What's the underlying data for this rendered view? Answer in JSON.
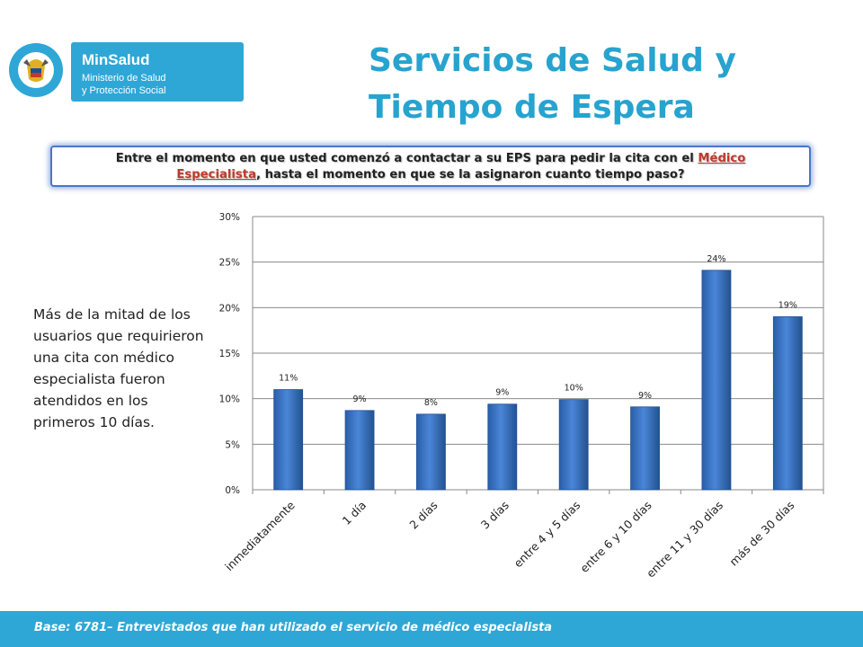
{
  "logo": {
    "seal_text": "REPÚBLICA DE COLOMBIA",
    "brand": "MinSalud",
    "subtitle_line1": "Ministerio de Salud",
    "subtitle_line2": "y Protección Social"
  },
  "title": {
    "line1": "Servicios de Salud y",
    "line2": "Tiempo de Espera"
  },
  "question": {
    "part1": "Entre  el momento en que usted comenzó a contactar a su EPS para pedir la cita con el ",
    "highlight1": "Médico",
    "highlight2": "Especialista",
    "part2": ", hasta el momento en que  se la asignaron cuanto tiempo paso?"
  },
  "note": "Más de la mitad de los usuarios que requirieron una cita con médico especialista fueron atendidos en los primeros 10 días.",
  "footer": "Base: 6781– Entrevistados que han utilizado el servicio de médico  especialista",
  "colors": {
    "accent": "#2ea7d6",
    "bar": "#3a72c4",
    "bar_dark": "#1f4f96",
    "title": "#27a3cf",
    "highlight": "#c0392b"
  },
  "chart_data": {
    "type": "bar",
    "categories": [
      "inmediatamente",
      "1 día",
      "2 días",
      "3 días",
      "entre 4 y 5 días",
      "entre 6 y 10 días",
      "entre 11 y 30 días",
      "más de 30 días"
    ],
    "values": [
      11,
      8.7,
      8.3,
      9.4,
      9.9,
      9.1,
      24.1,
      19.0
    ],
    "data_labels": [
      "11%",
      "9%",
      "8%",
      "9%",
      "10%",
      "9%",
      "24%",
      "19%"
    ],
    "yticks": [
      "0%",
      "5%",
      "10%",
      "15%",
      "20%",
      "25%",
      "30%"
    ],
    "ylim": [
      0,
      30
    ],
    "grid": true,
    "legend": "none"
  }
}
